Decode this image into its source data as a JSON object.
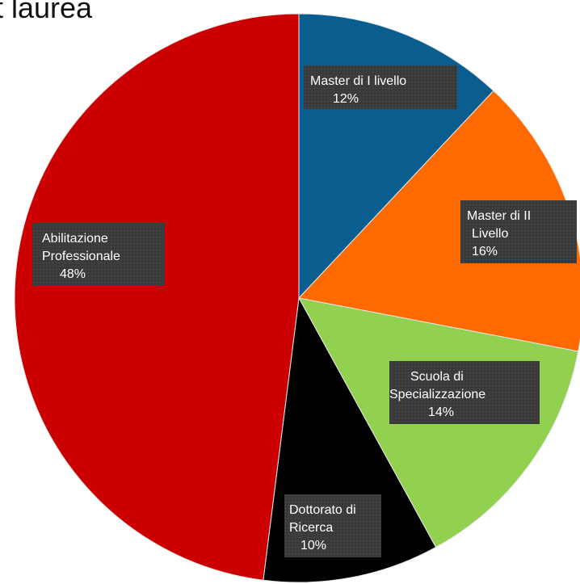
{
  "chart_data": {
    "type": "pie",
    "title": "t laurea",
    "slices": [
      {
        "label_lines": [
          "Master di I livello"
        ],
        "value_label": "12%",
        "value": 12,
        "color": "#0a5d8f"
      },
      {
        "label_lines": [
          "Master di II",
          "Livello"
        ],
        "value_label": "16%",
        "value": 16,
        "color": "#ff6a00"
      },
      {
        "label_lines": [
          "Scuola di",
          "Specializzazione"
        ],
        "value_label": "14%",
        "value": 14,
        "color": "#92d050"
      },
      {
        "label_lines": [
          "Dottorato di",
          "Ricerca"
        ],
        "value_label": "10%",
        "value": 10,
        "color": "#000000"
      },
      {
        "label_lines": [
          "Abilitazione",
          "Professionale"
        ],
        "value_label": "48%",
        "value": 48,
        "color": "#cc0000"
      }
    ],
    "legend": "none",
    "data_labels": "inside",
    "start_angle_deg": 0,
    "direction": "clockwise"
  }
}
